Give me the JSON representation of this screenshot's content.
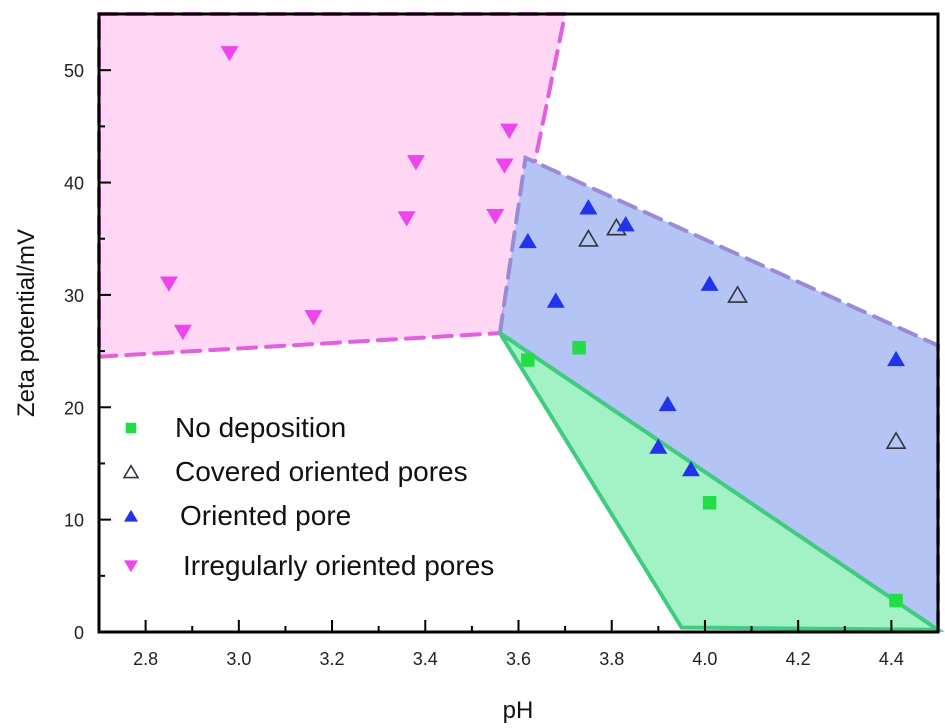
{
  "chart_data": {
    "type": "scatter",
    "title": "",
    "xlabel": "pH",
    "ylabel": "Zeta potential/mV",
    "xlim": [
      2.7,
      4.5
    ],
    "ylim": [
      0,
      55
    ],
    "x_ticks": [
      "2.8",
      "3.0",
      "3.2",
      "3.4",
      "3.6",
      "3.8",
      "4.0",
      "4.2",
      "4.4"
    ],
    "y_ticks": [
      "0",
      "10",
      "20",
      "30",
      "40",
      "50"
    ],
    "grid": false,
    "legend_position": "lower-left",
    "series": [
      {
        "name": "No deposition",
        "marker": "square",
        "color": "#22dd44",
        "points": [
          [
            3.62,
            24.2
          ],
          [
            3.73,
            25.3
          ],
          [
            4.01,
            11.5
          ],
          [
            4.41,
            2.8
          ]
        ]
      },
      {
        "name": "Covered oriented pores",
        "marker": "triangle-up-open",
        "color": "#333344",
        "points": [
          [
            3.75,
            35.0
          ],
          [
            3.81,
            36.0
          ],
          [
            4.07,
            30.0
          ],
          [
            4.41,
            17.0
          ]
        ]
      },
      {
        "name": "Oriented pore",
        "marker": "triangle-up",
        "color": "#2233ee",
        "points": [
          [
            3.62,
            34.8
          ],
          [
            3.68,
            29.5
          ],
          [
            3.75,
            37.8
          ],
          [
            3.83,
            36.3
          ],
          [
            3.92,
            20.3
          ],
          [
            3.9,
            16.5
          ],
          [
            3.97,
            14.5
          ],
          [
            4.01,
            31.0
          ],
          [
            4.41,
            24.3
          ]
        ]
      },
      {
        "name": "Irregularly oriented pores",
        "marker": "triangle-down",
        "color": "#ee44ee",
        "points": [
          [
            2.85,
            31.0
          ],
          [
            2.88,
            26.7
          ],
          [
            2.98,
            51.5
          ],
          [
            3.16,
            28.0
          ],
          [
            3.36,
            36.8
          ],
          [
            3.38,
            41.8
          ],
          [
            3.55,
            37.0
          ],
          [
            3.57,
            41.5
          ],
          [
            3.58,
            44.6
          ]
        ]
      }
    ],
    "regions": [
      {
        "name": "Irregularly oriented pores region",
        "fill": "#ffd6f3",
        "stroke": "#e060dd",
        "style": "dashed",
        "polygon": [
          [
            2.7,
            55
          ],
          [
            3.7,
            55
          ],
          [
            3.56,
            26.6
          ],
          [
            2.7,
            24.5
          ]
        ]
      },
      {
        "name": "Oriented pore region",
        "fill": "#b3c4f5",
        "stroke": "#9a8bd6",
        "style": "dashed",
        "polygon": [
          [
            3.56,
            26.6
          ],
          [
            3.615,
            42.2
          ],
          [
            4.5,
            25.5
          ],
          [
            4.5,
            0.2
          ]
        ]
      },
      {
        "name": "No deposition region",
        "fill": "#a3f2c6",
        "stroke": "#40cc80",
        "style": "solid",
        "polygon": [
          [
            3.56,
            26.6
          ],
          [
            4.5,
            0.2
          ],
          [
            3.95,
            0.4
          ]
        ]
      }
    ],
    "legend": [
      "No deposition",
      "Covered oriented pores",
      "Oriented pore",
      "Irregularly oriented pores"
    ]
  }
}
